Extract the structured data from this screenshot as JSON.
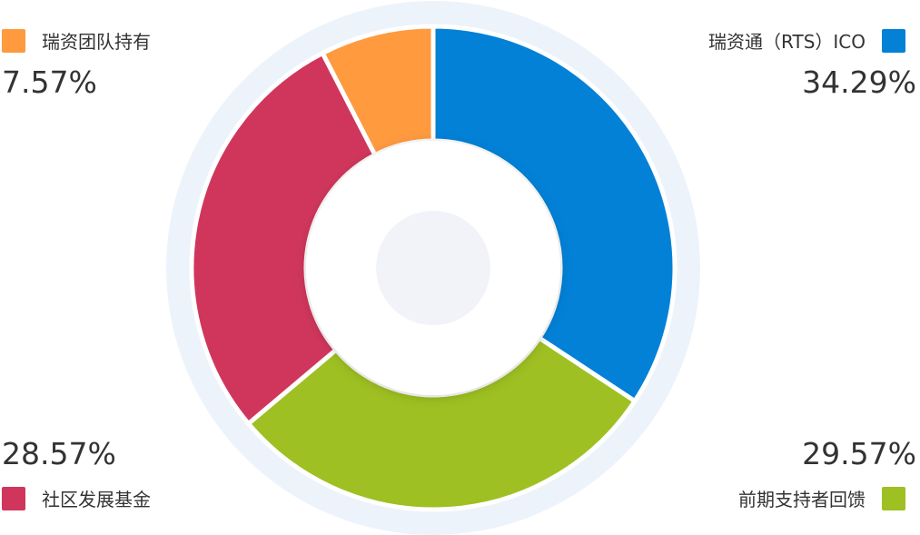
{
  "chart_data": {
    "type": "pie",
    "variant": "donut",
    "slices": [
      {
        "label": "瑞资通（RTS）ICO",
        "percent_label": "34.29%",
        "value": 34.29,
        "color": "#0281d7"
      },
      {
        "label": "前期支持者回馈",
        "percent_label": "29.57%",
        "value": 29.57,
        "color": "#9ec022"
      },
      {
        "label": "社区发展基金",
        "percent_label": "28.57%",
        "value": 28.57,
        "color": "#d0365b"
      },
      {
        "label": "瑞资团队持有",
        "percent_label": "7.57%",
        "value": 7.57,
        "color": "#ff9a3f"
      }
    ],
    "legend_placement": "corners"
  },
  "colors": {
    "outer_ring": "#edf3fb",
    "center_disc": "#f2f3f8"
  }
}
